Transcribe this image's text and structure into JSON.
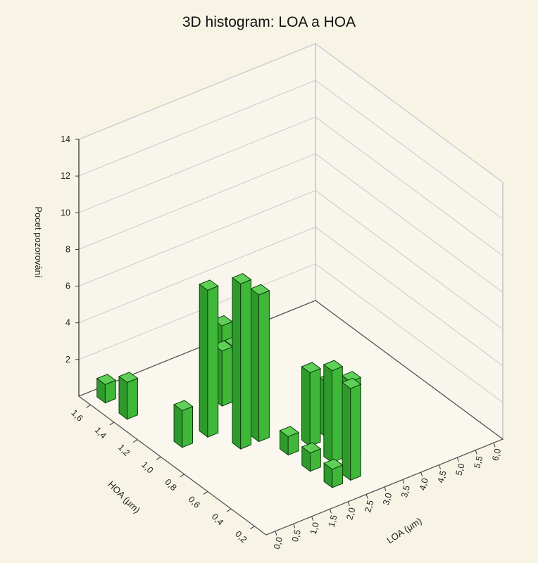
{
  "chart_data": {
    "type": "bar3d",
    "title": "3D histogram: LOA a HOA",
    "zlabel": "Pocet pozorování",
    "xlabel": "HOA (μm)",
    "ylabel": "LOA (μm)",
    "zlim": [
      0,
      14
    ],
    "z_ticks": [
      "2",
      "4",
      "6",
      "8",
      "10",
      "12",
      "14"
    ],
    "hoa_ticks": [
      "0,2",
      "0,4",
      "0,6",
      "0,8",
      "1,0",
      "1,2",
      "1,4",
      "1,6"
    ],
    "loa_ticks": [
      "0,0",
      "0,5",
      "1,0",
      "1,5",
      "2,0",
      "2,5",
      "3,0",
      "3,5",
      "4,0",
      "4,5",
      "5,0",
      "5,5",
      "6,0"
    ],
    "grid": true,
    "bar_color": "#3fb83a",
    "bars": [
      {
        "hoa": 1.7,
        "loa": 3.5,
        "count": 1
      },
      {
        "hoa": 1.7,
        "loa": 0.2,
        "count": 1
      },
      {
        "hoa": 1.5,
        "loa": 0.2,
        "count": 2
      },
      {
        "hoa": 1.5,
        "loa": 2.8,
        "count": 3
      },
      {
        "hoa": 1.3,
        "loa": 2.2,
        "count": 3
      },
      {
        "hoa": 1.3,
        "loa": 2.5,
        "count": 3
      },
      {
        "hoa": 1.1,
        "loa": 0.5,
        "count": 2
      },
      {
        "hoa": 1.1,
        "loa": 1.2,
        "count": 8
      },
      {
        "hoa": 0.9,
        "loa": 1.5,
        "count": 9
      },
      {
        "hoa": 0.9,
        "loa": 2.0,
        "count": 8
      },
      {
        "hoa": 0.7,
        "loa": 2.2,
        "count": 1
      },
      {
        "hoa": 0.7,
        "loa": 2.8,
        "count": 4
      },
      {
        "hoa": 0.7,
        "loa": 3.3,
        "count": 3
      },
      {
        "hoa": 0.5,
        "loa": 2.2,
        "count": 1
      },
      {
        "hoa": 0.5,
        "loa": 2.8,
        "count": 5
      },
      {
        "hoa": 0.5,
        "loa": 3.3,
        "count": 4
      },
      {
        "hoa": 0.3,
        "loa": 2.2,
        "count": 1
      },
      {
        "hoa": 0.3,
        "loa": 2.7,
        "count": 5
      }
    ]
  }
}
